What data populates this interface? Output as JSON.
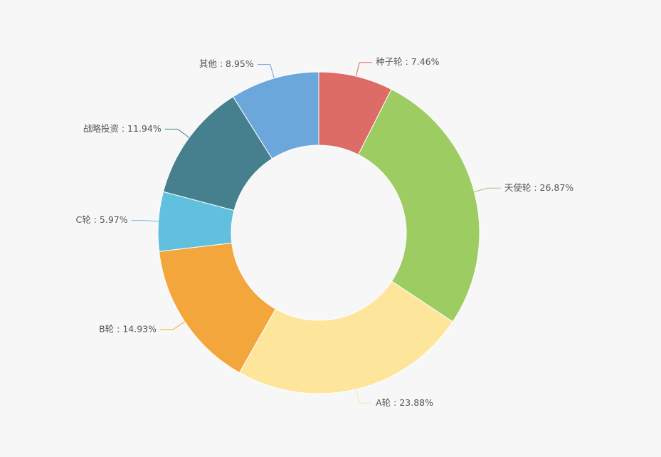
{
  "chart_data": {
    "type": "donut",
    "values": [
      7.46,
      26.87,
      23.88,
      14.93,
      5.97,
      11.94,
      8.95
    ],
    "value_labels": [
      "种子轮 : 7.46%",
      "天使轮 : 26.87%",
      "A轮 : 23.88%",
      "B轮 : 14.93%",
      "C轮 : 5.97%",
      "战略投资 : 11.94%",
      "其他 : 8.95%"
    ],
    "colors": [
      "#dd6b66",
      "#9dcc62",
      "#fde69b",
      "#f3a63c",
      "#60c0dd",
      "#467f8e",
      "#6ca7dc"
    ]
  }
}
